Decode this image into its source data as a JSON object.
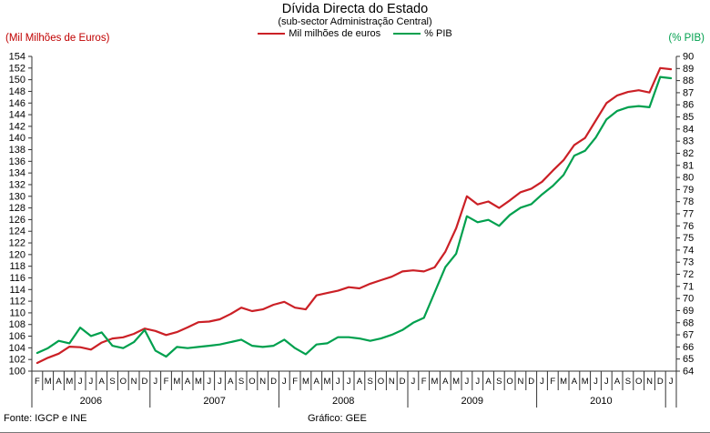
{
  "header": {
    "title": "Dívida Directa do Estado",
    "subtitle": "(sub-sector Administração Central)"
  },
  "axis_labels": {
    "left": "(Mil Milhões de Euros)",
    "right": "(% PIB)"
  },
  "legend": [
    {
      "label": "Mil milhões de euros",
      "color": "#cb2026"
    },
    {
      "label": "% PIB",
      "color": "#00a04e"
    }
  ],
  "footer": {
    "source": "Fonte: IGCP e INE",
    "credit": "Gráfico: GEE"
  },
  "colors": {
    "euros_line": "#cb2026",
    "pib_line": "#00a04e",
    "axis": "#333333",
    "left_label": "#c00000",
    "right_label": "#00a04e"
  },
  "chart_data": {
    "type": "line",
    "title": "Dívida Directa do Estado",
    "subtitle": "(sub-sector Administração Central)",
    "grid": false,
    "legend_position": "top",
    "left_axis": {
      "min": 100,
      "max": 154,
      "step": 2,
      "label": "(Mil Milhões de Euros)"
    },
    "right_axis": {
      "min": 64,
      "max": 90,
      "step": 1,
      "label": "(% PIB)"
    },
    "x_months": [
      "F",
      "M",
      "A",
      "M",
      "J",
      "J",
      "A",
      "S",
      "O",
      "N",
      "D",
      "J",
      "F",
      "M",
      "A",
      "M",
      "J",
      "J",
      "A",
      "S",
      "O",
      "N",
      "D",
      "J",
      "F",
      "M",
      "A",
      "M",
      "J",
      "J",
      "A",
      "S",
      "O",
      "N",
      "D",
      "J",
      "F",
      "M",
      "A",
      "M",
      "J",
      "J",
      "A",
      "S",
      "O",
      "N",
      "D",
      "J",
      "F",
      "M",
      "A",
      "M",
      "J",
      "J",
      "A",
      "S",
      "O",
      "N",
      "D",
      "J"
    ],
    "x_years": [
      {
        "label": "2006",
        "count": 11
      },
      {
        "label": "2007",
        "count": 12
      },
      {
        "label": "2008",
        "count": 12
      },
      {
        "label": "2009",
        "count": 12
      },
      {
        "label": "2010",
        "count": 12
      },
      {
        "label": "",
        "count": 1
      }
    ],
    "series": [
      {
        "name": "Mil milhões de euros",
        "axis": "left",
        "color": "#cb2026",
        "values": [
          101.4,
          102.3,
          103.0,
          104.2,
          104.1,
          103.7,
          104.9,
          105.6,
          105.8,
          106.4,
          107.3,
          106.9,
          106.2,
          106.7,
          107.5,
          108.4,
          108.5,
          108.9,
          109.8,
          110.9,
          110.3,
          110.6,
          111.4,
          111.9,
          110.9,
          110.6,
          113.0,
          113.4,
          113.8,
          114.4,
          114.2,
          115.0,
          115.6,
          116.2,
          117.1,
          117.3,
          117.1,
          117.8,
          120.5,
          124.5,
          130.0,
          128.6,
          129.1,
          128.0,
          129.3,
          130.7,
          131.3,
          132.5,
          134.4,
          136.2,
          138.8,
          140.0,
          143.0,
          146.0,
          147.3,
          147.9,
          148.2,
          147.8,
          152.0,
          151.8
        ]
      },
      {
        "name": "% PIB",
        "axis": "right",
        "color": "#00a04e",
        "values": [
          65.5,
          65.9,
          66.5,
          66.3,
          67.6,
          66.9,
          67.2,
          66.1,
          65.9,
          66.4,
          67.4,
          65.7,
          65.2,
          66.0,
          65.9,
          66.0,
          66.1,
          66.2,
          66.4,
          66.6,
          66.1,
          66.0,
          66.1,
          66.6,
          65.9,
          65.4,
          66.2,
          66.3,
          66.8,
          66.8,
          66.7,
          66.5,
          66.7,
          67.0,
          67.4,
          68.0,
          68.4,
          70.5,
          72.6,
          73.7,
          76.8,
          76.3,
          76.5,
          76.0,
          76.9,
          77.5,
          77.8,
          78.6,
          79.3,
          80.2,
          81.8,
          82.2,
          83.3,
          84.8,
          85.5,
          85.8,
          85.9,
          85.8,
          88.3,
          88.2
        ]
      }
    ]
  }
}
